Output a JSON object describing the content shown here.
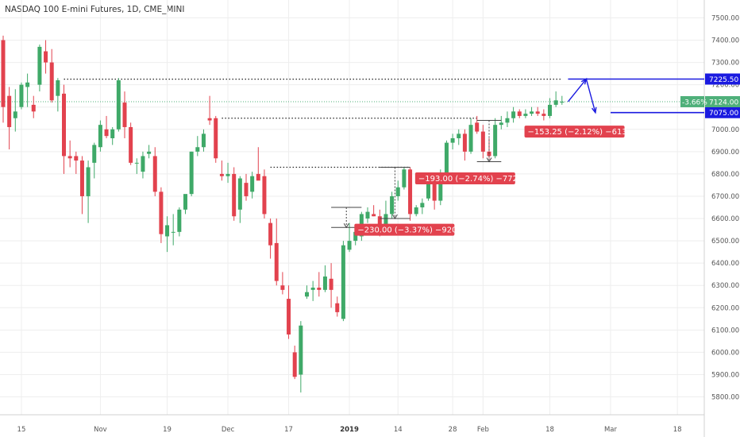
{
  "chart_data": {
    "type": "candlestick",
    "title": "NASDAQ 100 E-mini Futures, 1D, CME_MINI",
    "colors": {
      "up": "#3fa968",
      "down": "#e2424e",
      "accent": "#1a1ae0",
      "last_price": "#4fb07a",
      "grid": "#eeeeee"
    },
    "ylim": [
      5720,
      7580
    ],
    "yticks": [
      5800,
      5900,
      6000,
      6100,
      6200,
      6300,
      6400,
      6500,
      6600,
      6700,
      6800,
      6900,
      7000,
      7100,
      7200,
      7300,
      7400,
      7500
    ],
    "ytick_labels": [
      "5800.00",
      "5900.00",
      "6000.00",
      "6100.00",
      "6200.00",
      "6300.00",
      "6400.00",
      "6500.00",
      "6600.00",
      "6700.00",
      "6800.00",
      "6900.00",
      "7000.00",
      "7100.00",
      "7200.00",
      "7300.00",
      "7400.00",
      "7500.00"
    ],
    "xticks": [
      {
        "label": "15",
        "index": 3,
        "bold": false
      },
      {
        "label": "Nov",
        "index": 16,
        "bold": false
      },
      {
        "label": "19",
        "index": 27,
        "bold": false
      },
      {
        "label": "Dec",
        "index": 37,
        "bold": false
      },
      {
        "label": "17",
        "index": 47,
        "bold": false
      },
      {
        "label": "2019",
        "index": 57,
        "bold": true
      },
      {
        "label": "14",
        "index": 65,
        "bold": false
      },
      {
        "label": "28",
        "index": 74,
        "bold": false
      },
      {
        "label": "Feb",
        "index": 79,
        "bold": false
      },
      {
        "label": "18",
        "index": 90,
        "bold": false
      },
      {
        "label": "Mar",
        "index": 100,
        "bold": false
      },
      {
        "label": "18",
        "index": 111,
        "bold": false
      }
    ],
    "ohlc": [
      {
        "o": 7400,
        "h": 7420,
        "l": 7030,
        "c": 7100
      },
      {
        "o": 7150,
        "h": 7190,
        "l": 6910,
        "c": 7010
      },
      {
        "o": 7050,
        "h": 7180,
        "l": 6990,
        "c": 7080
      },
      {
        "o": 7100,
        "h": 7210,
        "l": 7090,
        "c": 7200
      },
      {
        "o": 7190,
        "h": 7250,
        "l": 7100,
        "c": 7210
      },
      {
        "o": 7110,
        "h": 7150,
        "l": 7050,
        "c": 7080
      },
      {
        "o": 7200,
        "h": 7380,
        "l": 7170,
        "c": 7370
      },
      {
        "o": 7350,
        "h": 7400,
        "l": 7250,
        "c": 7300
      },
      {
        "o": 7300,
        "h": 7360,
        "l": 7120,
        "c": 7130
      },
      {
        "o": 7150,
        "h": 7230,
        "l": 7080,
        "c": 7220
      },
      {
        "o": 7160,
        "h": 7200,
        "l": 6800,
        "c": 6880
      },
      {
        "o": 6880,
        "h": 6950,
        "l": 6830,
        "c": 6870
      },
      {
        "o": 6880,
        "h": 6900,
        "l": 6800,
        "c": 6860
      },
      {
        "o": 6860,
        "h": 6880,
        "l": 6620,
        "c": 6700
      },
      {
        "o": 6700,
        "h": 6860,
        "l": 6580,
        "c": 6830
      },
      {
        "o": 6850,
        "h": 6940,
        "l": 6780,
        "c": 6930
      },
      {
        "o": 6920,
        "h": 7040,
        "l": 6900,
        "c": 7020
      },
      {
        "o": 7000,
        "h": 7060,
        "l": 6960,
        "c": 6970
      },
      {
        "o": 6960,
        "h": 7010,
        "l": 6930,
        "c": 7000
      },
      {
        "o": 7000,
        "h": 7230,
        "l": 6990,
        "c": 7220
      },
      {
        "o": 7120,
        "h": 7170,
        "l": 6960,
        "c": 7010
      },
      {
        "o": 7010,
        "h": 7030,
        "l": 6840,
        "c": 6850
      },
      {
        "o": 6850,
        "h": 6870,
        "l": 6800,
        "c": 6850
      },
      {
        "o": 6810,
        "h": 6900,
        "l": 6780,
        "c": 6880
      },
      {
        "o": 6890,
        "h": 6930,
        "l": 6870,
        "c": 6900
      },
      {
        "o": 6880,
        "h": 6920,
        "l": 6700,
        "c": 6720
      },
      {
        "o": 6720,
        "h": 6740,
        "l": 6490,
        "c": 6530
      },
      {
        "o": 6520,
        "h": 6610,
        "l": 6450,
        "c": 6570
      },
      {
        "o": 6540,
        "h": 6620,
        "l": 6480,
        "c": 6540
      },
      {
        "o": 6540,
        "h": 6650,
        "l": 6520,
        "c": 6640
      },
      {
        "o": 6640,
        "h": 6700,
        "l": 6620,
        "c": 6710
      },
      {
        "o": 6710,
        "h": 6900,
        "l": 6700,
        "c": 6900
      },
      {
        "o": 6900,
        "h": 6970,
        "l": 6880,
        "c": 6920
      },
      {
        "o": 6920,
        "h": 7000,
        "l": 6900,
        "c": 6980
      },
      {
        "o": 7050,
        "h": 7150,
        "l": 7020,
        "c": 7040
      },
      {
        "o": 7050,
        "h": 7060,
        "l": 6850,
        "c": 6870
      },
      {
        "o": 6800,
        "h": 6860,
        "l": 6770,
        "c": 6790
      },
      {
        "o": 6790,
        "h": 6850,
        "l": 6760,
        "c": 6800
      },
      {
        "o": 6800,
        "h": 6830,
        "l": 6590,
        "c": 6610
      },
      {
        "o": 6640,
        "h": 6790,
        "l": 6580,
        "c": 6780
      },
      {
        "o": 6760,
        "h": 6800,
        "l": 6680,
        "c": 6700
      },
      {
        "o": 6720,
        "h": 6810,
        "l": 6690,
        "c": 6790
      },
      {
        "o": 6800,
        "h": 6920,
        "l": 6780,
        "c": 6770
      },
      {
        "o": 6790,
        "h": 6820,
        "l": 6600,
        "c": 6620
      },
      {
        "o": 6580,
        "h": 6600,
        "l": 6420,
        "c": 6480
      },
      {
        "o": 6490,
        "h": 6600,
        "l": 6300,
        "c": 6320
      },
      {
        "o": 6300,
        "h": 6360,
        "l": 6260,
        "c": 6280
      },
      {
        "o": 6240,
        "h": 6300,
        "l": 6060,
        "c": 6080
      },
      {
        "o": 6000,
        "h": 6030,
        "l": 5880,
        "c": 5890
      },
      {
        "o": 5900,
        "h": 6140,
        "l": 5820,
        "c": 6120
      },
      {
        "o": 6250,
        "h": 6300,
        "l": 6240,
        "c": 6270
      },
      {
        "o": 6280,
        "h": 6320,
        "l": 6230,
        "c": 6290
      },
      {
        "o": 6290,
        "h": 6360,
        "l": 6250,
        "c": 6280
      },
      {
        "o": 6280,
        "h": 6390,
        "l": 6270,
        "c": 6340
      },
      {
        "o": 6330,
        "h": 6400,
        "l": 6200,
        "c": 6280
      },
      {
        "o": 6220,
        "h": 6250,
        "l": 6160,
        "c": 6180
      },
      {
        "o": 6150,
        "h": 6500,
        "l": 6140,
        "c": 6480
      },
      {
        "o": 6460,
        "h": 6580,
        "l": 6450,
        "c": 6500
      },
      {
        "o": 6500,
        "h": 6560,
        "l": 6480,
        "c": 6540
      },
      {
        "o": 6520,
        "h": 6630,
        "l": 6500,
        "c": 6620
      },
      {
        "o": 6600,
        "h": 6650,
        "l": 6580,
        "c": 6630
      },
      {
        "o": 6620,
        "h": 6660,
        "l": 6610,
        "c": 6610
      },
      {
        "o": 6610,
        "h": 6640,
        "l": 6520,
        "c": 6560
      },
      {
        "o": 6540,
        "h": 6680,
        "l": 6530,
        "c": 6620
      },
      {
        "o": 6620,
        "h": 6720,
        "l": 6600,
        "c": 6700
      },
      {
        "o": 6700,
        "h": 6770,
        "l": 6680,
        "c": 6740
      },
      {
        "o": 6740,
        "h": 6830,
        "l": 6730,
        "c": 6820
      },
      {
        "o": 6820,
        "h": 6830,
        "l": 6590,
        "c": 6620
      },
      {
        "o": 6620,
        "h": 6660,
        "l": 6610,
        "c": 6650
      },
      {
        "o": 6650,
        "h": 6690,
        "l": 6620,
        "c": 6670
      },
      {
        "o": 6690,
        "h": 6800,
        "l": 6680,
        "c": 6770
      },
      {
        "o": 6770,
        "h": 6790,
        "l": 6640,
        "c": 6680
      },
      {
        "o": 6680,
        "h": 6820,
        "l": 6660,
        "c": 6800
      },
      {
        "o": 6800,
        "h": 6950,
        "l": 6780,
        "c": 6940
      },
      {
        "o": 6940,
        "h": 6980,
        "l": 6910,
        "c": 6960
      },
      {
        "o": 6960,
        "h": 7000,
        "l": 6930,
        "c": 6980
      },
      {
        "o": 6980,
        "h": 7000,
        "l": 6860,
        "c": 6900
      },
      {
        "o": 6900,
        "h": 7050,
        "l": 6890,
        "c": 7020
      },
      {
        "o": 7030,
        "h": 7060,
        "l": 6980,
        "c": 6990
      },
      {
        "o": 6990,
        "h": 7020,
        "l": 6870,
        "c": 6900
      },
      {
        "o": 6900,
        "h": 6960,
        "l": 6870,
        "c": 6880
      },
      {
        "o": 6880,
        "h": 7050,
        "l": 6870,
        "c": 7020
      },
      {
        "o": 7020,
        "h": 7060,
        "l": 7000,
        "c": 7030
      },
      {
        "o": 7030,
        "h": 7080,
        "l": 7010,
        "c": 7050
      },
      {
        "o": 7050,
        "h": 7100,
        "l": 7030,
        "c": 7080
      },
      {
        "o": 7080,
        "h": 7090,
        "l": 7050,
        "c": 7060
      },
      {
        "o": 7060,
        "h": 7090,
        "l": 7050,
        "c": 7070
      },
      {
        "o": 7070,
        "h": 7100,
        "l": 7060,
        "c": 7080
      },
      {
        "o": 7080,
        "h": 7100,
        "l": 7060,
        "c": 7070
      },
      {
        "o": 7070,
        "h": 7090,
        "l": 7040,
        "c": 7060
      },
      {
        "o": 7060,
        "h": 7140,
        "l": 7050,
        "c": 7110
      },
      {
        "o": 7110,
        "h": 7170,
        "l": 7100,
        "c": 7130
      },
      {
        "o": 7120,
        "h": 7150,
        "l": 7110,
        "c": 7124
      }
    ],
    "price_lines": [
      {
        "label": "7225.50",
        "value": 7225.5,
        "from_index": 93,
        "to_index": 113
      },
      {
        "label": "7075.00",
        "value": 7075,
        "from_index": 100,
        "to_index": 113
      }
    ],
    "dotted_levels": [
      {
        "value": 7225,
        "from_index": 10,
        "to_index": 92
      },
      {
        "value": 7050,
        "from_index": 36,
        "to_index": 78
      },
      {
        "value": 6830,
        "from_index": 44,
        "to_index": 67
      }
    ],
    "measures": [
      {
        "label": "−153.25 (−2.12%) −613",
        "at_index": 87,
        "value": 6990,
        "range_from_index": 78,
        "range_to_index": 82,
        "top": 7040,
        "bottom": 6855
      },
      {
        "label": "−193.00 (−2.74%) −772",
        "at_index": 69,
        "value": 6780,
        "range_from_index": 62,
        "range_to_index": 67,
        "top": 6830,
        "bottom": 6600
      },
      {
        "label": "−230.00 (−3.37%) −920",
        "at_index": 59,
        "value": 6550,
        "range_from_index": 54,
        "range_to_index": 59,
        "top": 6650,
        "bottom": 6560
      }
    ],
    "last_price": {
      "value": 7124,
      "label": "7124.00",
      "change": "-3.66%"
    },
    "projection_path": [
      {
        "index": 93,
        "value": 7124
      },
      {
        "index": 96,
        "value": 7225.5
      },
      {
        "index": 97.5,
        "value": 7075
      }
    ]
  }
}
